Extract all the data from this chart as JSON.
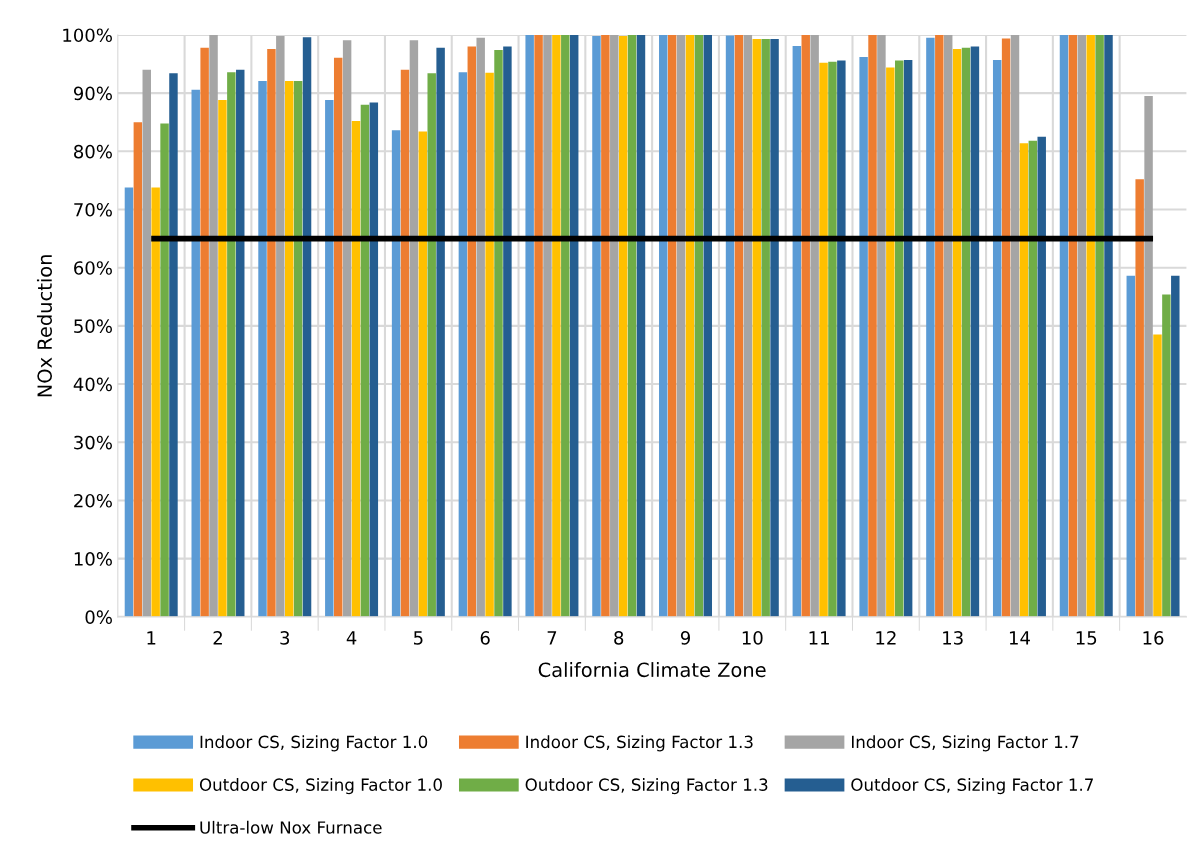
{
  "chart_data": {
    "type": "bar",
    "xlabel": "California Climate Zone",
    "ylabel": "NOx Reduction",
    "categories": [
      "1",
      "2",
      "3",
      "4",
      "5",
      "6",
      "7",
      "8",
      "9",
      "10",
      "11",
      "12",
      "13",
      "14",
      "15",
      "16"
    ],
    "ylim": [
      0,
      100
    ],
    "yticks": [
      {
        "value": 0,
        "label": "0%"
      },
      {
        "value": 10,
        "label": "10%"
      },
      {
        "value": 20,
        "label": "20%"
      },
      {
        "value": 30,
        "label": "30%"
      },
      {
        "value": 40,
        "label": "40%"
      },
      {
        "value": 50,
        "label": "50%"
      },
      {
        "value": 60,
        "label": "60%"
      },
      {
        "value": 70,
        "label": "70%"
      },
      {
        "value": 80,
        "label": "80%"
      },
      {
        "value": 90,
        "label": "90%"
      },
      {
        "value": 100,
        "label": "100%"
      }
    ],
    "grid": true,
    "legend": "bottom",
    "series": [
      {
        "name": "Indoor CS, Sizing Factor 1.0",
        "color": "#5b9bd5",
        "values": [
          73.8,
          90.6,
          92.1,
          88.8,
          83.6,
          93.6,
          100,
          99.8,
          100,
          99.9,
          98.1,
          96.2,
          99.5,
          95.7,
          100,
          58.6
        ]
      },
      {
        "name": "Indoor CS, Sizing Factor 1.3",
        "color": "#ed7d31",
        "values": [
          85,
          97.8,
          97.6,
          96.1,
          94,
          98,
          100,
          100,
          100,
          100,
          100,
          100,
          100,
          99.4,
          100,
          75.2
        ]
      },
      {
        "name": "Indoor CS, Sizing Factor 1.7",
        "color": "#a5a5a5",
        "values": [
          94,
          100,
          99.8,
          99.1,
          99.1,
          99.5,
          100,
          100,
          100,
          100,
          100,
          100,
          100,
          100,
          100,
          89.5
        ]
      },
      {
        "name": "Outdoor CS, Sizing Factor 1.0",
        "color": "#ffc000",
        "values": [
          73.8,
          88.8,
          92.1,
          85.2,
          83.4,
          93.5,
          100,
          99.8,
          100,
          99.3,
          95.2,
          94.4,
          97.6,
          81.4,
          100,
          48.5
        ]
      },
      {
        "name": "Outdoor CS, Sizing Factor 1.3",
        "color": "#70ad47",
        "values": [
          84.8,
          93.6,
          92.1,
          88,
          93.4,
          97.4,
          100,
          100,
          100,
          99.3,
          95.4,
          95.6,
          97.8,
          81.8,
          100,
          55.4
        ]
      },
      {
        "name": "Outdoor CS, Sizing Factor 1.7",
        "color": "#255e91",
        "values": [
          93.4,
          94,
          99.6,
          88.4,
          97.8,
          98,
          100,
          100,
          100,
          99.3,
          95.6,
          95.7,
          98,
          82.5,
          100,
          58.6
        ]
      }
    ],
    "ref_lines": [
      {
        "axis": "y",
        "value": 65,
        "label": "Ultra-low Nox Furnace",
        "color": "#000000"
      }
    ]
  }
}
